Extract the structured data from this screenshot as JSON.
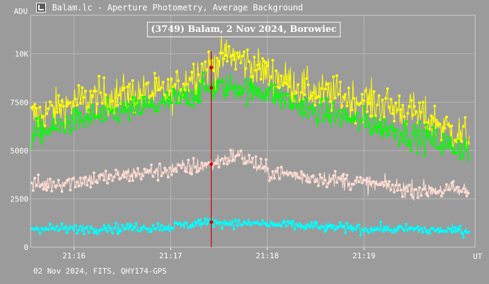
{
  "window": {
    "title": "Balam.lc - Aperture Photometry, Average Background",
    "icon": "photometry-app-icon"
  },
  "footer": "02 Nov 2024, FITS, QHY174-GPS",
  "chart_data": {
    "type": "scatter",
    "title": "(3749) Balam, 2 Nov 2024, Borowiec",
    "ylabel": "ADU",
    "xlabel": "UT",
    "x_unit": "minutes since 21:15 UT",
    "xlim": [
      0.55,
      5.15
    ],
    "ylim": [
      0,
      12000
    ],
    "x_ticks": [
      {
        "value": 1,
        "label": "21:16"
      },
      {
        "value": 2,
        "label": "21:17"
      },
      {
        "value": 3,
        "label": "21:18"
      },
      {
        "value": 4,
        "label": "21:19"
      }
    ],
    "y_ticks": [
      {
        "value": 0,
        "label": "0"
      },
      {
        "value": 2500,
        "label": "2500"
      },
      {
        "value": 5000,
        "label": "5000"
      },
      {
        "value": 7500,
        "label": "7500"
      },
      {
        "value": 10000,
        "label": "10K"
      }
    ],
    "grid": true,
    "cursor": {
      "x": 2.42,
      "color": "#cc0000"
    },
    "series": [
      {
        "color": "#ffff00",
        "x": [
          0.55,
          1.0,
          1.5,
          2.0,
          2.3,
          2.42,
          2.6,
          3.0,
          3.5,
          4.0,
          4.5,
          5.1
        ],
        "y": [
          6700,
          7500,
          7900,
          8000,
          9200,
          9300,
          10000,
          9000,
          8000,
          7600,
          7000,
          5600
        ],
        "noise": 500
      },
      {
        "color": "#00ff00",
        "x": [
          0.55,
          1.0,
          1.5,
          2.0,
          2.3,
          2.42,
          2.6,
          3.0,
          3.5,
          4.0,
          4.5,
          5.1
        ],
        "y": [
          5800,
          6500,
          7000,
          7500,
          8100,
          8250,
          8300,
          8000,
          7000,
          6500,
          5800,
          5000
        ],
        "noise": 350
      },
      {
        "color": "#ffdcd2",
        "x": [
          0.55,
          1.0,
          1.5,
          2.0,
          2.42,
          2.7,
          3.0,
          3.5,
          4.0,
          4.5,
          5.1
        ],
        "y": [
          3200,
          3400,
          3700,
          4000,
          4300,
          4800,
          3900,
          3600,
          3300,
          3000,
          2900
        ],
        "noise": 230
      },
      {
        "color": "#00ffff",
        "x": [
          0.55,
          1.0,
          1.5,
          2.0,
          2.42,
          3.0,
          3.5,
          4.0,
          4.5,
          5.1
        ],
        "y": [
          1000,
          950,
          1000,
          1050,
          1300,
          1200,
          1050,
          950,
          900,
          850
        ],
        "noise": 130
      }
    ]
  }
}
